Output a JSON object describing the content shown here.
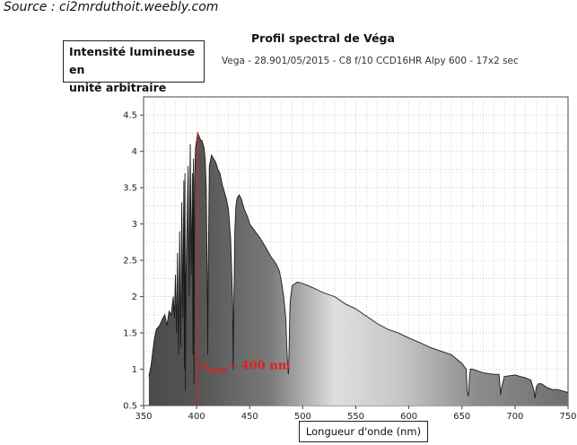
{
  "source": "Source : ci2mrduthoit.weebly.com",
  "chart_data": {
    "type": "area",
    "title": "Profil spectral de Véga",
    "subtitle": "Vega - 28.901/05/2015 - C8 f/10 CCD16HR Alpy 600 - 17x2 sec",
    "ylabel_lines": [
      "Intensité lumineuse en",
      "unité arbitraire"
    ],
    "xlabel": "Longueur d'onde (nm)",
    "xlim": [
      350,
      750
    ],
    "ylim": [
      0.5,
      4.75
    ],
    "xticks": [
      350,
      400,
      450,
      500,
      550,
      600,
      650,
      700,
      750
    ],
    "yticks": [
      "0.5",
      "1",
      "1.5",
      "2",
      "2.5",
      "3",
      "3.5",
      "4",
      "4.5"
    ],
    "grid": true,
    "annotation": {
      "lambda": "λ",
      "sub": "max",
      "text": "~ 400 nm",
      "x": 401
    },
    "series": [
      {
        "x": [
          355,
          357,
          360,
          362,
          365,
          368,
          370,
          372,
          374,
          376,
          378,
          379,
          380,
          381,
          382,
          383,
          384,
          385,
          386,
          387,
          388,
          388.5,
          389,
          389.5,
          390,
          391,
          392,
          393,
          394,
          395,
          396,
          396.5,
          397,
          397.5,
          398,
          399,
          400,
          401,
          402,
          403,
          404,
          405,
          406,
          407,
          408,
          409,
          410,
          410.5,
          411,
          412,
          414,
          416,
          418,
          420,
          422,
          424,
          426,
          428,
          430,
          432,
          434,
          434.5,
          435,
          436,
          437,
          438,
          440,
          442,
          445,
          448,
          450,
          455,
          460,
          465,
          470,
          475,
          478,
          480,
          482,
          484,
          485,
          486,
          486.5,
          487,
          488,
          490,
          495,
          500,
          505,
          510,
          520,
          530,
          540,
          550,
          560,
          570,
          580,
          590,
          600,
          610,
          620,
          630,
          640,
          650,
          654,
          655,
          656,
          656.5,
          657,
          658,
          660,
          670,
          680,
          685,
          686,
          686.5,
          687,
          690,
          700,
          710,
          715,
          718,
          719,
          720,
          722,
          725,
          730,
          735,
          740,
          745,
          750
        ],
        "values": [
          0.9,
          1.05,
          1.4,
          1.55,
          1.6,
          1.7,
          1.75,
          1.6,
          1.8,
          1.75,
          2.0,
          1.7,
          2.3,
          1.5,
          2.6,
          1.2,
          2.9,
          1.3,
          3.3,
          1.7,
          3.6,
          1.0,
          3.7,
          0.7,
          2.3,
          3.0,
          3.8,
          2.0,
          4.1,
          2.3,
          3.7,
          1.2,
          3.9,
          0.8,
          3.6,
          4.05,
          4.15,
          4.25,
          4.22,
          4.18,
          4.15,
          4.15,
          4.1,
          4.05,
          3.9,
          3.5,
          2.3,
          1.2,
          2.4,
          3.8,
          3.95,
          3.9,
          3.85,
          3.75,
          3.7,
          3.55,
          3.45,
          3.35,
          3.2,
          2.8,
          1.9,
          1.0,
          1.8,
          2.9,
          3.25,
          3.35,
          3.4,
          3.35,
          3.2,
          3.1,
          3.0,
          2.9,
          2.8,
          2.68,
          2.55,
          2.45,
          2.35,
          2.2,
          2.0,
          1.7,
          1.3,
          1.0,
          0.93,
          1.2,
          1.9,
          2.15,
          2.2,
          2.18,
          2.15,
          2.12,
          2.05,
          2.0,
          1.9,
          1.83,
          1.73,
          1.63,
          1.55,
          1.5,
          1.43,
          1.37,
          1.3,
          1.25,
          1.2,
          1.08,
          1.0,
          0.7,
          0.63,
          0.7,
          0.85,
          1.0,
          1.0,
          0.95,
          0.93,
          0.93,
          0.75,
          0.65,
          0.72,
          0.9,
          0.92,
          0.88,
          0.85,
          0.7,
          0.6,
          0.75,
          0.8,
          0.8,
          0.75,
          0.72,
          0.72,
          0.7,
          0.68
        ]
      }
    ]
  }
}
